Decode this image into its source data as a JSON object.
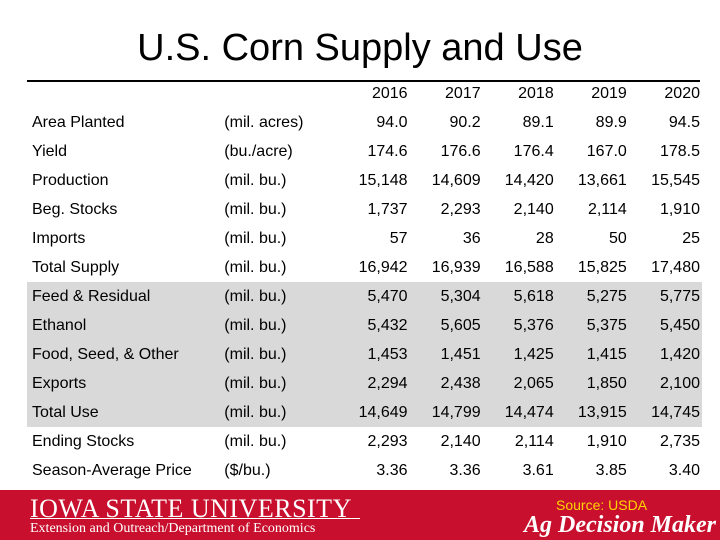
{
  "title": "U.S. Corn Supply and Use",
  "years": [
    "2016",
    "2017",
    "2018",
    "2019",
    "2020"
  ],
  "rows": [
    {
      "label": "Area Planted",
      "unit": "(mil. acres)",
      "values": [
        "94.0",
        "90.2",
        "89.1",
        "89.9",
        "94.5"
      ],
      "shaded": false
    },
    {
      "label": "Yield",
      "unit": "(bu./acre)",
      "values": [
        "174.6",
        "176.6",
        "176.4",
        "167.0",
        "178.5"
      ],
      "shaded": false
    },
    {
      "label": "Production",
      "unit": "(mil. bu.)",
      "values": [
        "15,148",
        "14,609",
        "14,420",
        "13,661",
        "15,545"
      ],
      "shaded": false
    },
    {
      "label": "Beg. Stocks",
      "unit": "(mil. bu.)",
      "values": [
        "1,737",
        "2,293",
        "2,140",
        "2,114",
        "1,910"
      ],
      "shaded": false
    },
    {
      "label": "Imports",
      "unit": "(mil. bu.)",
      "values": [
        "57",
        "36",
        "28",
        "50",
        "25"
      ],
      "shaded": false
    },
    {
      "label": "Total Supply",
      "unit": "(mil. bu.)",
      "values": [
        "16,942",
        "16,939",
        "16,588",
        "15,825",
        "17,480"
      ],
      "shaded": false
    },
    {
      "label": "Feed & Residual",
      "unit": "(mil. bu.)",
      "values": [
        "5,470",
        "5,304",
        "5,618",
        "5,275",
        "5,775"
      ],
      "shaded": true
    },
    {
      "label": "Ethanol",
      "unit": "(mil. bu.)",
      "values": [
        "5,432",
        "5,605",
        "5,376",
        "5,375",
        "5,450"
      ],
      "shaded": true
    },
    {
      "label": "Food, Seed, & Other",
      "unit": "(mil. bu.)",
      "values": [
        "1,453",
        "1,451",
        "1,425",
        "1,415",
        "1,420"
      ],
      "shaded": true
    },
    {
      "label": "Exports",
      "unit": "(mil. bu.)",
      "values": [
        "2,294",
        "2,438",
        "2,065",
        "1,850",
        "2,100"
      ],
      "shaded": true
    },
    {
      "label": "Total Use",
      "unit": "(mil. bu.)",
      "values": [
        "14,649",
        "14,799",
        "14,474",
        "13,915",
        "14,745"
      ],
      "shaded": true
    },
    {
      "label": "Ending Stocks",
      "unit": "(mil. bu.)",
      "values": [
        "2,293",
        "2,140",
        "2,114",
        "1,910",
        "2,735"
      ],
      "shaded": false
    },
    {
      "label": "Season-Average Price",
      "unit": "($/bu.)",
      "values": [
        "3.36",
        "3.36",
        "3.61",
        "3.85",
        "3.40"
      ],
      "shaded": false
    }
  ],
  "footer": {
    "university": "IOWA STATE UNIVERSITY",
    "department": "Extension and Outreach/Department of Economics",
    "source": "Source: USDA",
    "brand": "Ag Decision Maker"
  }
}
